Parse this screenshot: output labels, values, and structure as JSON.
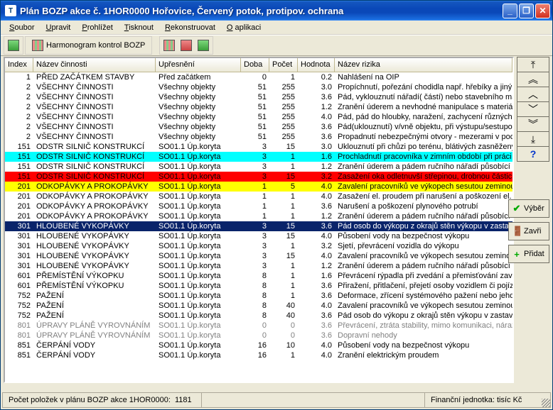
{
  "window": {
    "title": "Plán BOZP akce č. 1HOR0000 Hořovice, Červený potok, protipov. ochrana",
    "app_icon_glyph": "T"
  },
  "menu": [
    "Soubor",
    "Upravit",
    "Prohlížet",
    "Tisknout",
    "Rekonstruovat",
    "O aplikaci"
  ],
  "menu_underline_index": [
    0,
    0,
    0,
    0,
    0,
    0
  ],
  "toolbar": {
    "harmonogram_label": "Harmonogram kontrol BOZP"
  },
  "columns": [
    {
      "key": "index",
      "label": "Index",
      "cls": "col-index"
    },
    {
      "key": "name",
      "label": "Název činnosti",
      "cls": "col-name"
    },
    {
      "key": "ups",
      "label": "Upřesnění",
      "cls": "col-ups"
    },
    {
      "key": "doba",
      "label": "Doba",
      "cls": "col-doba"
    },
    {
      "key": "pocet",
      "label": "Počet",
      "cls": "col-pocet"
    },
    {
      "key": "hodnota",
      "label": "Hodnota",
      "cls": "col-hodnota"
    },
    {
      "key": "risk",
      "label": "Název rizika",
      "cls": "col-risk"
    }
  ],
  "rows": [
    {
      "index": "1",
      "name": "PŘED ZAČÁTKEM STAVBY",
      "ups": "Před začátkem",
      "doba": "0",
      "pocet": "1",
      "hodnota": "0.2",
      "risk": "Nahlášení na OIP",
      "hl": ""
    },
    {
      "index": "2",
      "name": "VŠECHNY ČINNOSTI",
      "ups": "Všechny objekty",
      "doba": "51",
      "pocet": "255",
      "hodnota": "3.0",
      "risk": "Propíchnutí, pořezání chodidla např. hřebíky a jinými ost",
      "hl": ""
    },
    {
      "index": "2",
      "name": "VŠECHNY ČINNOSTI",
      "ups": "Všechny objekty",
      "doba": "51",
      "pocet": "255",
      "hodnota": "3.6",
      "risk": "Pád, vyklouznutí nářadí( částí) nebo stavebního materiál",
      "hl": ""
    },
    {
      "index": "2",
      "name": "VŠECHNY ČINNOSTI",
      "ups": "Všechny objekty",
      "doba": "51",
      "pocet": "255",
      "hodnota": "1.2",
      "risk": "Zranění úderem a nevhodné manipulace s materiálem",
      "hl": ""
    },
    {
      "index": "2",
      "name": "VŠECHNY ČINNOSTI",
      "ups": "Všechny objekty",
      "doba": "51",
      "pocet": "255",
      "hodnota": "4.0",
      "risk": "Pád, pád do hloubky, naražení, zachycení různých částí",
      "hl": ""
    },
    {
      "index": "2",
      "name": "VŠECHNY ČINNOSTI",
      "ups": "Všechny objekty",
      "doba": "51",
      "pocet": "255",
      "hodnota": "3.6",
      "risk": "Pád(uklouznutí) v/vně objektu, při výstupu/sestupov",
      "hl": ""
    },
    {
      "index": "2",
      "name": "VŠECHNY ČINNOSTI",
      "ups": "Všechny objekty",
      "doba": "51",
      "pocet": "255",
      "hodnota": "3.6",
      "risk": "Propadnutí nebezpečnými otvory - mezerami v podlahách",
      "hl": ""
    },
    {
      "index": "151",
      "name": "ODSTR SILNIČ KONSTRUKCÍ",
      "ups": "SO01.1 Úp.koryta",
      "doba": "3",
      "pocet": "15",
      "hodnota": "3.0",
      "risk": "Uklouznutí při chůzi po terénu, blátivých zasněžených a r",
      "hl": ""
    },
    {
      "index": "151",
      "name": "ODSTR SILNIČ KONSTRUKCÍ",
      "ups": "SO01.1 Úp.koryta",
      "doba": "3",
      "pocet": "1",
      "hodnota": "1.6",
      "risk": "Prochladnutí pracovníka v zimním období při práci na ve",
      "hl": "cyan"
    },
    {
      "index": "151",
      "name": "ODSTR SILNIČ KONSTRUKCÍ",
      "ups": "SO01.1 Úp.koryta",
      "doba": "3",
      "pocet": "1",
      "hodnota": "1.2",
      "risk": "Zranění úderem a pádem ručního nářadí působící kinetic",
      "hl": ""
    },
    {
      "index": "151",
      "name": "ODSTR SILNIČ KONSTRUKCÍ",
      "ups": "SO01.1 Úp.koryta",
      "doba": "3",
      "pocet": "15",
      "hodnota": "3.2",
      "risk": "Zasažení oka odletnuvší střepinou, drobnou částicí, úlon",
      "hl": "red"
    },
    {
      "index": "201",
      "name": "ODKOPÁVKY A PROKOPÁVKY",
      "ups": "SO01.1 Úp.koryta",
      "doba": "1",
      "pocet": "5",
      "hodnota": "4.0",
      "risk": "Zavalení pracovníků ve výkopech sesutou zeminou nezp",
      "hl": "yellow"
    },
    {
      "index": "201",
      "name": "ODKOPÁVKY A PROKOPÁVKY",
      "ups": "SO01.1 Úp.koryta",
      "doba": "1",
      "pocet": "1",
      "hodnota": "4.0",
      "risk": "Zasažení el. proudem při narušení a poškození el. kabel",
      "hl": ""
    },
    {
      "index": "201",
      "name": "ODKOPÁVKY A PROKOPÁVKY",
      "ups": "SO01.1 Úp.koryta",
      "doba": "1",
      "pocet": "1",
      "hodnota": "3.6",
      "risk": "Narušení a poškození plynového potrubí",
      "hl": ""
    },
    {
      "index": "201",
      "name": "ODKOPÁVKY A PROKOPÁVKY",
      "ups": "SO01.1 Úp.koryta",
      "doba": "1",
      "pocet": "1",
      "hodnota": "1.2",
      "risk": "Zranění úderem a pádem ručního nářadí působící kinetic",
      "hl": ""
    },
    {
      "index": "301",
      "name": "HLOUBENÉ VYKOPÁVKY",
      "ups": "SO01.1 Úp.koryta",
      "doba": "3",
      "pocet": "15",
      "hodnota": "3.6",
      "risk": "Pád osob do výkopu z okrajů stěn výkopu v zastavěném",
      "hl": "sel"
    },
    {
      "index": "301",
      "name": "HLOUBENÉ VYKOPÁVKY",
      "ups": "SO01.1 Úp.koryta",
      "doba": "3",
      "pocet": "15",
      "hodnota": "4.0",
      "risk": "Působení vody na bezpečnost výkopu",
      "hl": ""
    },
    {
      "index": "301",
      "name": "HLOUBENÉ VYKOPÁVKY",
      "ups": "SO01.1 Úp.koryta",
      "doba": "3",
      "pocet": "1",
      "hodnota": "3.2",
      "risk": "Sjetí, převrácení vozidla do výkopu",
      "hl": ""
    },
    {
      "index": "301",
      "name": "HLOUBENÉ VYKOPÁVKY",
      "ups": "SO01.1 Úp.koryta",
      "doba": "3",
      "pocet": "15",
      "hodnota": "4.0",
      "risk": "Zavalení pracovníků ve výkopech sesutou zeminou nezp",
      "hl": ""
    },
    {
      "index": "301",
      "name": "HLOUBENÉ VYKOPÁVKY",
      "ups": "SO01.1 Úp.koryta",
      "doba": "3",
      "pocet": "1",
      "hodnota": "1.2",
      "risk": "Zranění úderem a pádem ručního nářadí působící kinetic",
      "hl": ""
    },
    {
      "index": "601",
      "name": "PŘEMÍSTĚNÍ VÝKOPKU",
      "ups": "SO01.1 Úp.koryta",
      "doba": "8",
      "pocet": "1",
      "hodnota": "1.6",
      "risk": "Převrácení rýpadla při zvedání a přemisťování zavěšený",
      "hl": ""
    },
    {
      "index": "601",
      "name": "PŘEMÍSTĚNÍ VÝKOPKU",
      "ups": "SO01.1 Úp.koryta",
      "doba": "8",
      "pocet": "1",
      "hodnota": "3.6",
      "risk": "Přiražení, přitlačení, přejetí osoby vozidlem či pojízdným s",
      "hl": ""
    },
    {
      "index": "752",
      "name": "PAŽENÍ",
      "ups": "SO01.1 Úp.koryta",
      "doba": "8",
      "pocet": "1",
      "hodnota": "3.6",
      "risk": "Deformace, zřícení systémového pažení nebo jeho části",
      "hl": ""
    },
    {
      "index": "752",
      "name": "PAŽENÍ",
      "ups": "SO01.1 Úp.koryta",
      "doba": "8",
      "pocet": "40",
      "hodnota": "4.0",
      "risk": "Zavalení pracovníků ve výkopech sesutou zeminou nezp",
      "hl": ""
    },
    {
      "index": "752",
      "name": "PAŽENÍ",
      "ups": "SO01.1 Úp.koryta",
      "doba": "8",
      "pocet": "40",
      "hodnota": "3.6",
      "risk": "Pád osob do výkopu z okrajů stěn výkopu v zastavěném",
      "hl": ""
    },
    {
      "index": "801",
      "name": "ÚPRAVY PLÁNĚ VYROVNÁNÍM",
      "ups": "SO01.1 Úp.koryta",
      "doba": "0",
      "pocet": "0",
      "hodnota": "3.6",
      "risk": "Převrácení, ztráta stability, mimo komunikaci, náraz, přev",
      "hl": "gray"
    },
    {
      "index": "801",
      "name": "ÚPRAVY PLÁNĚ VYROVNÁNÍM",
      "ups": "SO01.1 Úp.koryta",
      "doba": "0",
      "pocet": "0",
      "hodnota": "3.6",
      "risk": "Dopravní nehody",
      "hl": "gray"
    },
    {
      "index": "851",
      "name": "ČERPÁNÍ VODY",
      "ups": "SO01.1 Úp.koryta",
      "doba": "16",
      "pocet": "10",
      "hodnota": "4.0",
      "risk": "Působení vody na bezpečnost výkopu",
      "hl": ""
    },
    {
      "index": "851",
      "name": "ČERPÁNÍ VODY",
      "ups": "SO01.1 Úp.koryta",
      "doba": "16",
      "pocet": "1",
      "hodnota": "4.0",
      "risk": "Zranění elektrickým proudem",
      "hl": ""
    }
  ],
  "nav_glyphs": [
    "⤒",
    "︽",
    "︿",
    "﹀",
    "︾",
    "⤓",
    "?"
  ],
  "side_buttons": {
    "vyber": "Výběr",
    "zavri": "Zavři",
    "pridat": "Přidat"
  },
  "statusbar": {
    "left_label": "Počet položek v plánu BOZP akce 1HOR0000:",
    "left_value": "1181",
    "right_label": "Finanční jednotka:",
    "right_value": "tisíc Kč"
  }
}
